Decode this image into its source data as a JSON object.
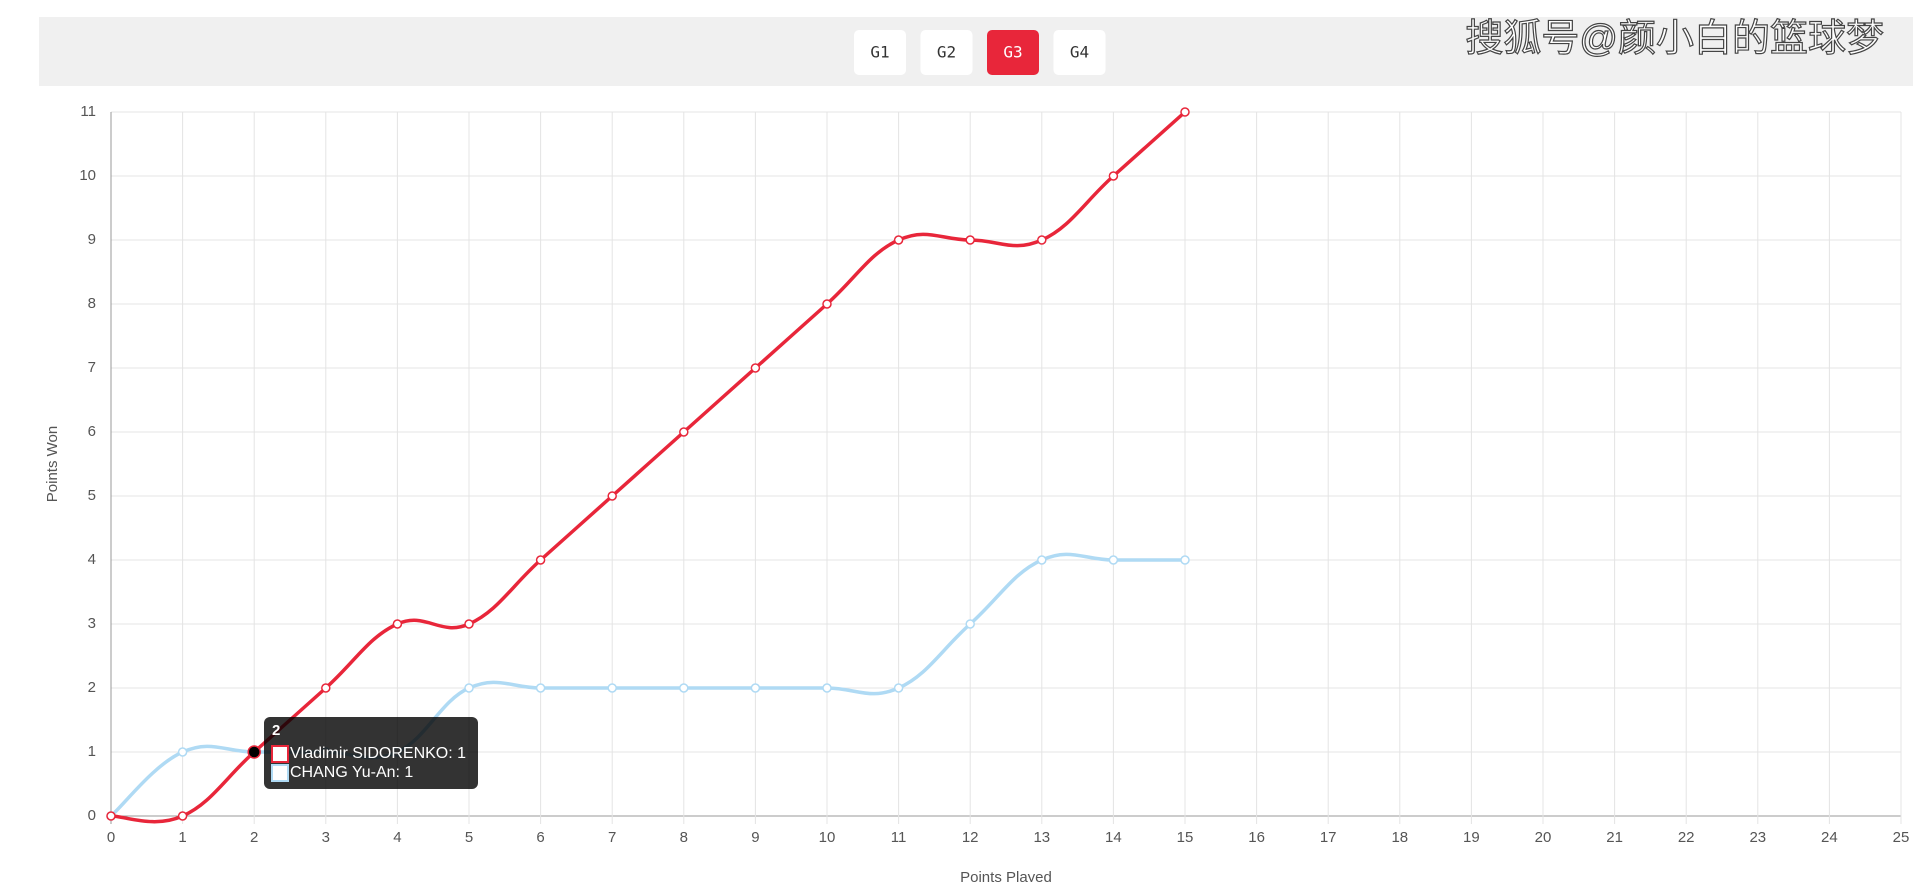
{
  "tabs": [
    "G1",
    "G2",
    "G3",
    "G4"
  ],
  "active_tab": 2,
  "watermark": "搜狐号@颜小白的篮球梦",
  "tooltip": {
    "title": "2",
    "lines": [
      "Vladimir SIDORENKO: 1",
      "CHANG Yu-An: 1"
    ]
  },
  "chart_data": {
    "type": "line",
    "xlabel": "Points Played",
    "ylabel": "Points Won",
    "x": [
      0,
      1,
      2,
      3,
      4,
      5,
      6,
      7,
      8,
      9,
      10,
      11,
      12,
      13,
      14,
      15
    ],
    "series": [
      {
        "name": "Vladimir SIDORENKO",
        "color": "#e8263a",
        "values": [
          0,
          0,
          1,
          2,
          3,
          3,
          4,
          5,
          6,
          7,
          8,
          9,
          9,
          9,
          10,
          11
        ]
      },
      {
        "name": "CHANG Yu-An",
        "color": "#afdaf4",
        "values": [
          0,
          1,
          1,
          1,
          1,
          2,
          2,
          2,
          2,
          2,
          2,
          2,
          3,
          4,
          4,
          4
        ]
      }
    ],
    "xlim": [
      0,
      25
    ],
    "xticks": [
      0,
      1,
      2,
      3,
      4,
      5,
      6,
      7,
      8,
      9,
      10,
      11,
      12,
      13,
      14,
      15,
      16,
      17,
      18,
      19,
      20,
      21,
      22,
      23,
      24,
      25
    ],
    "ylim": [
      0,
      11
    ],
    "yticks": [
      0,
      1,
      2,
      3,
      4,
      5,
      6,
      7,
      8,
      9,
      10,
      11
    ],
    "grid": true
  }
}
